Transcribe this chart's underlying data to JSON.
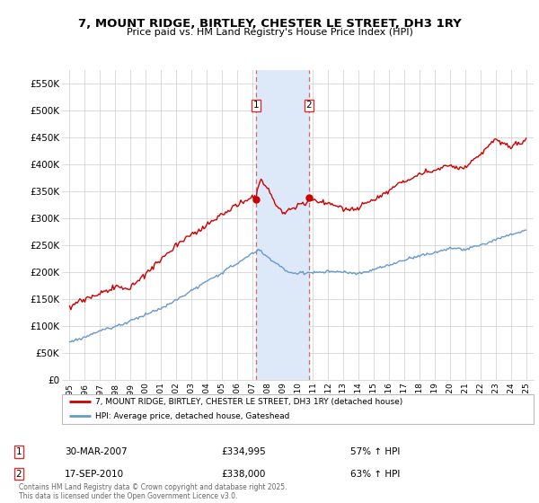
{
  "title": "7, MOUNT RIDGE, BIRTLEY, CHESTER LE STREET, DH3 1RY",
  "subtitle": "Price paid vs. HM Land Registry's House Price Index (HPI)",
  "legend_line1": "7, MOUNT RIDGE, BIRTLEY, CHESTER LE STREET, DH3 1RY (detached house)",
  "legend_line2": "HPI: Average price, detached house, Gateshead",
  "red_color": "#cc0000",
  "blue_color": "#6699cc",
  "shade_color": "#dde8f8",
  "marker1_x": 2007.25,
  "marker1_y": 334995,
  "marker2_x": 2010.72,
  "marker2_y": 338000,
  "footer": "Contains HM Land Registry data © Crown copyright and database right 2025.\nThis data is licensed under the Open Government Licence v3.0.",
  "ylim": [
    0,
    575000
  ],
  "xlim": [
    1994.5,
    2025.5
  ],
  "yticks": [
    0,
    50000,
    100000,
    150000,
    200000,
    250000,
    300000,
    350000,
    400000,
    450000,
    500000,
    550000
  ],
  "ytick_labels": [
    "£0",
    "£50K",
    "£100K",
    "£150K",
    "£200K",
    "£250K",
    "£300K",
    "£350K",
    "£400K",
    "£450K",
    "£500K",
    "£550K"
  ],
  "xticks": [
    1995,
    1996,
    1997,
    1998,
    1999,
    2000,
    2001,
    2002,
    2003,
    2004,
    2005,
    2006,
    2007,
    2008,
    2009,
    2010,
    2011,
    2012,
    2013,
    2014,
    2015,
    2016,
    2017,
    2018,
    2019,
    2020,
    2021,
    2022,
    2023,
    2024,
    2025
  ],
  "marker1_label": "1",
  "marker2_label": "2",
  "row1_date": "30-MAR-2007",
  "row1_price": "£334,995",
  "row1_hpi": "57% ↑ HPI",
  "row2_date": "17-SEP-2010",
  "row2_price": "£338,000",
  "row2_hpi": "63% ↑ HPI"
}
